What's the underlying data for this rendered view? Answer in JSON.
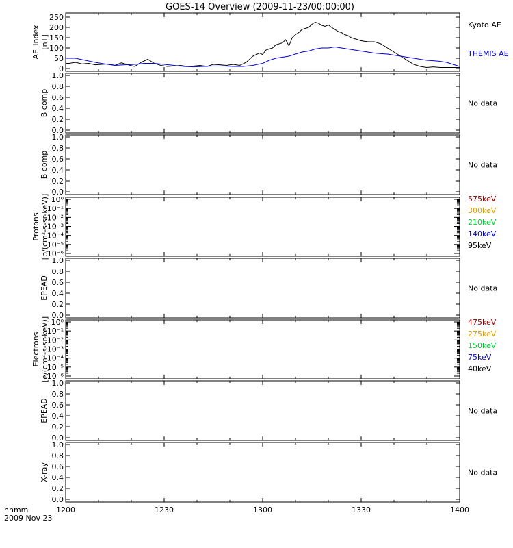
{
  "title": "GOES-14 Overview (2009-11-23/00:00:00)",
  "footer": {
    "line1": "hhmm",
    "line2": "2009 Nov 23"
  },
  "x_ticks": [
    "1200",
    "1230",
    "1300",
    "1330",
    "1400"
  ],
  "chart_data": [
    {
      "type": "line",
      "panel": "ae",
      "ylabel": [
        "AE_index",
        "[nT]"
      ],
      "ylim": [
        0,
        260
      ],
      "y_ticks": [
        "0",
        "50",
        "100",
        "150",
        "200",
        "250"
      ],
      "x_range_minutes": [
        0,
        120
      ],
      "series": [
        {
          "name": "Kyoto AE",
          "color": "#000000",
          "x": [
            0,
            1,
            3,
            5,
            7,
            9,
            11,
            13,
            15,
            17,
            19,
            21,
            23,
            25,
            27,
            29,
            31,
            33,
            35,
            37,
            39,
            41,
            43,
            45,
            47,
            49,
            51,
            53,
            55,
            57,
            59,
            60,
            61,
            62,
            63,
            64,
            65,
            66,
            67,
            68,
            69,
            70,
            71,
            72,
            73,
            74,
            75,
            76,
            77,
            78,
            79,
            80,
            81,
            82,
            83,
            84,
            85,
            86,
            87,
            88,
            89,
            90,
            92,
            94,
            96,
            98,
            100,
            102,
            104,
            106,
            108,
            110,
            112,
            114,
            116,
            118,
            120
          ],
          "y": [
            25,
            25,
            30,
            22,
            25,
            18,
            20,
            22,
            15,
            28,
            18,
            10,
            30,
            45,
            25,
            15,
            10,
            12,
            15,
            10,
            12,
            15,
            10,
            20,
            18,
            15,
            20,
            15,
            30,
            60,
            75,
            68,
            90,
            95,
            100,
            115,
            120,
            125,
            140,
            110,
            150,
            165,
            175,
            190,
            195,
            200,
            215,
            225,
            220,
            210,
            205,
            212,
            200,
            190,
            180,
            175,
            165,
            160,
            150,
            145,
            140,
            135,
            130,
            130,
            120,
            100,
            80,
            60,
            40,
            20,
            10,
            5,
            8,
            5,
            5,
            5,
            5
          ]
        },
        {
          "name": "THEMIS AE",
          "color": "#0000cc",
          "x": [
            0,
            3,
            6,
            9,
            12,
            15,
            18,
            21,
            24,
            27,
            30,
            33,
            36,
            39,
            42,
            45,
            48,
            51,
            54,
            57,
            60,
            62,
            64,
            66,
            68,
            70,
            72,
            74,
            76,
            78,
            80,
            82,
            84,
            86,
            88,
            90,
            92,
            94,
            96,
            98,
            100,
            102,
            104,
            106,
            108,
            110,
            112,
            114,
            116,
            118,
            120
          ],
          "y": [
            50,
            50,
            40,
            30,
            22,
            15,
            18,
            20,
            25,
            25,
            20,
            15,
            10,
            8,
            10,
            12,
            12,
            10,
            10,
            15,
            25,
            40,
            50,
            55,
            60,
            70,
            80,
            85,
            95,
            100,
            100,
            105,
            100,
            95,
            90,
            85,
            80,
            75,
            72,
            70,
            65,
            60,
            55,
            50,
            45,
            40,
            38,
            35,
            30,
            20,
            10
          ]
        }
      ]
    },
    {
      "type": "line",
      "panel": "bcomp1",
      "ylabel": [
        "B comp"
      ],
      "ylim": [
        0,
        1
      ],
      "y_ticks": [
        "0.0",
        "0.2",
        "0.4",
        "0.6",
        "0.8",
        "1.0"
      ],
      "note": "No data",
      "series": []
    },
    {
      "type": "line",
      "panel": "bcomp2",
      "ylabel": [
        "B comp"
      ],
      "ylim": [
        0,
        1
      ],
      "y_ticks": [
        "0.0",
        "0.2",
        "0.4",
        "0.6",
        "0.8",
        "1.0"
      ],
      "note": "No data",
      "series": []
    },
    {
      "type": "line",
      "panel": "protons",
      "ylabel": [
        "Protons",
        "[p/(cm²-s-sr-keV)]"
      ],
      "yscale": "log",
      "ylim": [
        1e-06,
        1
      ],
      "y_ticks": [
        "10⁻⁶",
        "10⁻⁵",
        "10⁻⁴",
        "10⁻³",
        "10⁻²",
        "10⁻¹",
        "10⁰"
      ],
      "legend": [
        {
          "name": "575keV",
          "color": "#8b0000"
        },
        {
          "name": "300keV",
          "color": "#e0a000"
        },
        {
          "name": "210keV",
          "color": "#00cc33"
        },
        {
          "name": "140keV",
          "color": "#0000cc"
        },
        {
          "name": "95keV",
          "color": "#000000"
        }
      ],
      "series": []
    },
    {
      "type": "line",
      "panel": "epead1",
      "ylabel": [
        "EPEAD"
      ],
      "ylim": [
        0,
        1
      ],
      "y_ticks": [
        "0.0",
        "0.2",
        "0.4",
        "0.6",
        "0.8",
        "1.0"
      ],
      "note": "No data",
      "series": []
    },
    {
      "type": "line",
      "panel": "electrons",
      "ylabel": [
        "Electrons",
        "[e/(cm²-s-sr-keV)]"
      ],
      "yscale": "log",
      "ylim": [
        1e-06,
        1
      ],
      "y_ticks": [
        "10⁻⁶",
        "10⁻⁵",
        "10⁻⁴",
        "10⁻³",
        "10⁻²",
        "10⁻¹",
        "10⁰"
      ],
      "legend": [
        {
          "name": "475keV",
          "color": "#8b0000"
        },
        {
          "name": "275keV",
          "color": "#e0a000"
        },
        {
          "name": "150keV",
          "color": "#00cc33"
        },
        {
          "name": "75keV",
          "color": "#0000cc"
        },
        {
          "name": "40keV",
          "color": "#000000"
        }
      ],
      "series": []
    },
    {
      "type": "line",
      "panel": "epead2",
      "ylabel": [
        "EPEAD"
      ],
      "ylim": [
        0,
        1
      ],
      "y_ticks": [
        "0.0",
        "0.2",
        "0.4",
        "0.6",
        "0.8",
        "1.0"
      ],
      "note": "No data",
      "series": []
    },
    {
      "type": "line",
      "panel": "xray",
      "ylabel": [
        "X-ray"
      ],
      "ylim": [
        0,
        1
      ],
      "y_ticks": [
        "0.0",
        "0.2",
        "0.4",
        "0.6",
        "0.8",
        "1.0"
      ],
      "note": "No data",
      "series": []
    }
  ]
}
